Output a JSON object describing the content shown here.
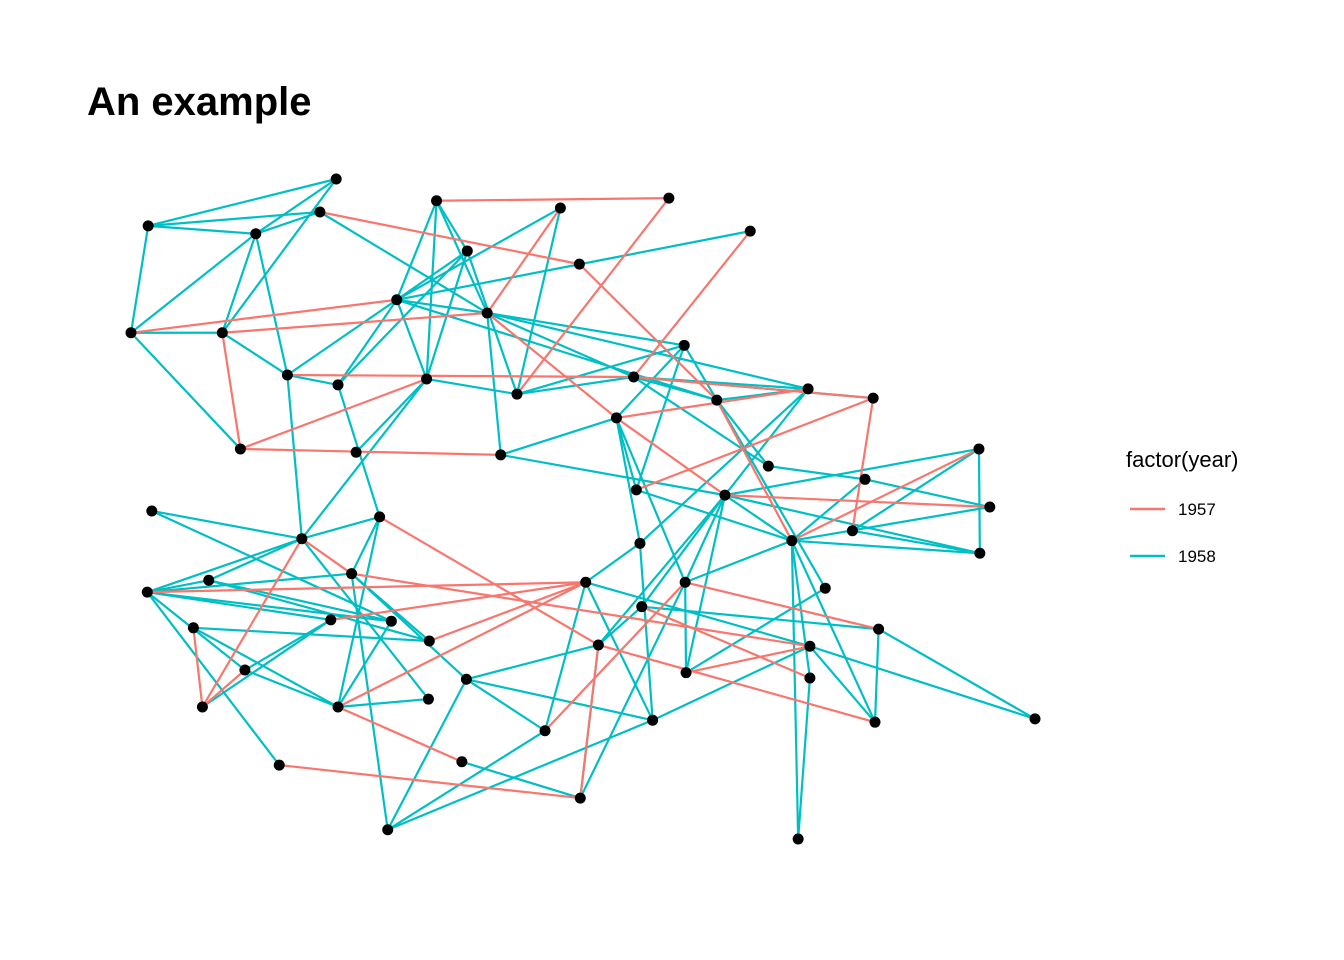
{
  "chart_data": {
    "type": "network",
    "title": "An example",
    "legend_title": "factor(year)",
    "xlim": [
      0,
      1
    ],
    "ylim": [
      0,
      1
    ],
    "node_color": "#000000",
    "nodes": {
      "x": [
        0.227,
        0.338,
        0.595,
        0.209,
        0.475,
        0.019,
        0.138,
        0.685,
        0.372,
        0.496,
        0,
        0.101,
        0.294,
        0.394,
        0.612,
        0.173,
        0.229,
        0.327,
        0.427,
        0.556,
        0.749,
        0.821,
        0.648,
        0.537,
        0.121,
        0.249,
        0.409,
        0.938,
        0.705,
        0.559,
        0.812,
        0.657,
        0.95,
        0.023,
        0.275,
        0.798,
        0.189,
        0.563,
        0.731,
        0.939,
        0.244,
        0.086,
        0.503,
        0.613,
        0.018,
        0.768,
        0.565,
        0.221,
        0.288,
        0.069,
        0.827,
        0.33,
        0.517,
        0.751,
        0.126,
        0.371,
        0.614,
        0.751,
        0.229,
        0.329,
        0.079,
        0.577,
        0.823,
        1,
        0.458,
        0.366,
        0.164,
        0.497,
        0.284,
        0.738
      ],
      "y": [
        1,
        0.967,
        0.971,
        0.95,
        0.956,
        0.929,
        0.917,
        0.921,
        0.891,
        0.871,
        0.767,
        0.767,
        0.817,
        0.797,
        0.748,
        0.703,
        0.688,
        0.697,
        0.674,
        0.7,
        0.682,
        0.668,
        0.665,
        0.638,
        0.591,
        0.586,
        0.582,
        0.591,
        0.565,
        0.529,
        0.545,
        0.521,
        0.503,
        0.497,
        0.488,
        0.467,
        0.455,
        0.448,
        0.452,
        0.433,
        0.402,
        0.392,
        0.389,
        0.389,
        0.374,
        0.38,
        0.352,
        0.332,
        0.33,
        0.32,
        0.318,
        0.3,
        0.294,
        0.292,
        0.256,
        0.242,
        0.252,
        0.244,
        0.2,
        0.212,
        0.2,
        0.18,
        0.177,
        0.182,
        0.164,
        0.117,
        0.112,
        0.062,
        0.014,
        0
      ]
    },
    "series": [
      {
        "name": "1958",
        "color": "#00BFC4",
        "edges": [
          [
            0,
            5
          ],
          [
            0,
            11
          ],
          [
            0,
            6
          ],
          [
            3,
            6
          ],
          [
            3,
            13
          ],
          [
            5,
            3
          ],
          [
            5,
            6
          ],
          [
            5,
            10
          ],
          [
            6,
            10
          ],
          [
            6,
            11
          ],
          [
            6,
            15
          ],
          [
            10,
            11
          ],
          [
            10,
            24
          ],
          [
            11,
            15
          ],
          [
            1,
            8
          ],
          [
            1,
            17
          ],
          [
            1,
            12
          ],
          [
            1,
            13
          ],
          [
            4,
            12
          ],
          [
            4,
            18
          ],
          [
            7,
            12
          ],
          [
            8,
            12
          ],
          [
            8,
            17
          ],
          [
            8,
            18
          ],
          [
            8,
            16
          ],
          [
            12,
            15
          ],
          [
            12,
            17
          ],
          [
            12,
            16
          ],
          [
            12,
            13
          ],
          [
            12,
            22
          ],
          [
            13,
            14
          ],
          [
            13,
            26
          ],
          [
            13,
            20
          ],
          [
            13,
            19
          ],
          [
            15,
            16
          ],
          [
            15,
            36
          ],
          [
            16,
            34
          ],
          [
            17,
            18
          ],
          [
            17,
            25
          ],
          [
            17,
            36
          ],
          [
            18,
            14
          ],
          [
            18,
            19
          ],
          [
            19,
            20
          ],
          [
            19,
            28
          ],
          [
            19,
            22
          ],
          [
            14,
            22
          ],
          [
            14,
            23
          ],
          [
            14,
            29
          ],
          [
            20,
            22
          ],
          [
            20,
            31
          ],
          [
            20,
            37
          ],
          [
            21,
            19
          ],
          [
            22,
            28
          ],
          [
            22,
            45
          ],
          [
            23,
            29
          ],
          [
            23,
            37
          ],
          [
            23,
            43
          ],
          [
            26,
            31
          ],
          [
            26,
            23
          ],
          [
            27,
            31
          ],
          [
            27,
            35
          ],
          [
            27,
            39
          ],
          [
            28,
            30
          ],
          [
            29,
            38
          ],
          [
            30,
            32
          ],
          [
            30,
            38
          ],
          [
            31,
            39
          ],
          [
            31,
            38
          ],
          [
            31,
            43
          ],
          [
            31,
            46
          ],
          [
            31,
            52
          ],
          [
            31,
            56
          ],
          [
            32,
            38
          ],
          [
            33,
            36
          ],
          [
            33,
            48
          ],
          [
            34,
            36
          ],
          [
            34,
            40
          ],
          [
            34,
            58
          ],
          [
            36,
            44
          ],
          [
            36,
            41
          ],
          [
            36,
            59
          ],
          [
            37,
            42
          ],
          [
            37,
            61
          ],
          [
            38,
            39
          ],
          [
            38,
            43
          ],
          [
            38,
            57
          ],
          [
            38,
            69
          ],
          [
            38,
            62
          ],
          [
            39,
            35
          ],
          [
            40,
            44
          ],
          [
            40,
            51
          ],
          [
            40,
            55
          ],
          [
            40,
            68
          ],
          [
            41,
            44
          ],
          [
            41,
            48
          ],
          [
            41,
            51
          ],
          [
            42,
            64
          ],
          [
            42,
            53
          ],
          [
            42,
            61
          ],
          [
            43,
            56
          ],
          [
            43,
            67
          ],
          [
            44,
            47
          ],
          [
            44,
            48
          ],
          [
            44,
            54
          ],
          [
            45,
            56
          ],
          [
            46,
            50
          ],
          [
            46,
            52
          ],
          [
            49,
            51
          ],
          [
            49,
            58
          ],
          [
            50,
            62
          ],
          [
            50,
            63
          ],
          [
            52,
            55
          ],
          [
            52,
            67
          ],
          [
            53,
            63
          ],
          [
            53,
            62
          ],
          [
            54,
            47
          ],
          [
            54,
            58
          ],
          [
            55,
            61
          ],
          [
            55,
            64
          ],
          [
            57,
            69
          ],
          [
            58,
            59
          ],
          [
            58,
            48
          ],
          [
            60,
            47
          ],
          [
            61,
            53
          ],
          [
            64,
            68
          ],
          [
            65,
            67
          ],
          [
            66,
            44
          ],
          [
            68,
            55
          ],
          [
            68,
            61
          ]
        ]
      },
      {
        "name": "1957",
        "color": "#F8766D",
        "edges": [
          [
            1,
            2
          ],
          [
            3,
            9
          ],
          [
            2,
            18
          ],
          [
            7,
            19
          ],
          [
            4,
            13
          ],
          [
            10,
            12
          ],
          [
            11,
            13
          ],
          [
            11,
            24
          ],
          [
            24,
            26
          ],
          [
            24,
            17
          ],
          [
            15,
            19
          ],
          [
            9,
            22
          ],
          [
            13,
            23
          ],
          [
            19,
            21
          ],
          [
            23,
            20
          ],
          [
            23,
            31
          ],
          [
            22,
            38
          ],
          [
            21,
            35
          ],
          [
            27,
            38
          ],
          [
            31,
            32
          ],
          [
            34,
            52
          ],
          [
            36,
            40
          ],
          [
            40,
            53
          ],
          [
            42,
            44
          ],
          [
            42,
            47
          ],
          [
            43,
            50
          ],
          [
            46,
            57
          ],
          [
            49,
            60
          ],
          [
            60,
            36
          ],
          [
            58,
            42
          ],
          [
            52,
            62
          ],
          [
            56,
            53
          ],
          [
            64,
            43
          ],
          [
            66,
            67
          ],
          [
            65,
            58
          ],
          [
            67,
            52
          ],
          [
            51,
            42
          ],
          [
            60,
            54
          ],
          [
            21,
            29
          ]
        ]
      }
    ]
  }
}
